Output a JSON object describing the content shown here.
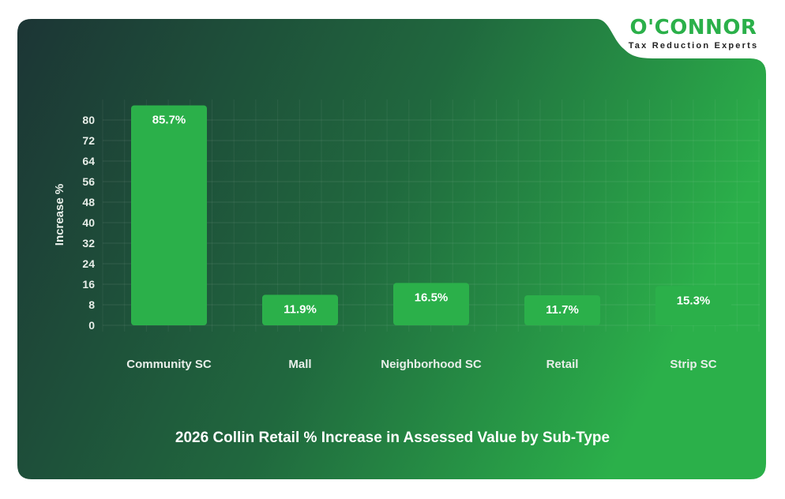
{
  "logo": {
    "name": "O'CONNOR",
    "tagline": "Tax Reduction Experts"
  },
  "colors": {
    "bar": "#2bb04a",
    "bg_left": "#1c3535",
    "bg_right": "#2bb04a",
    "logo_green": "#2bb04a"
  },
  "chart_data": {
    "type": "bar",
    "title": "2026 Collin Retail % Increase in Assessed Value by Sub-Type",
    "xlabel": "",
    "ylabel": "Increase %",
    "categories": [
      "Community SC",
      "Mall",
      "Neighborhood SC",
      "Retail",
      "Strip SC"
    ],
    "values": [
      85.7,
      11.9,
      16.5,
      11.7,
      15.3
    ],
    "data_labels": [
      "85.7%",
      "11.9%",
      "16.5%",
      "11.7%",
      "15.3%"
    ],
    "yticks": [
      0,
      8,
      16,
      24,
      32,
      40,
      48,
      56,
      64,
      72,
      80
    ],
    "ylim": [
      0,
      88
    ],
    "grid": true,
    "legend": "none"
  }
}
